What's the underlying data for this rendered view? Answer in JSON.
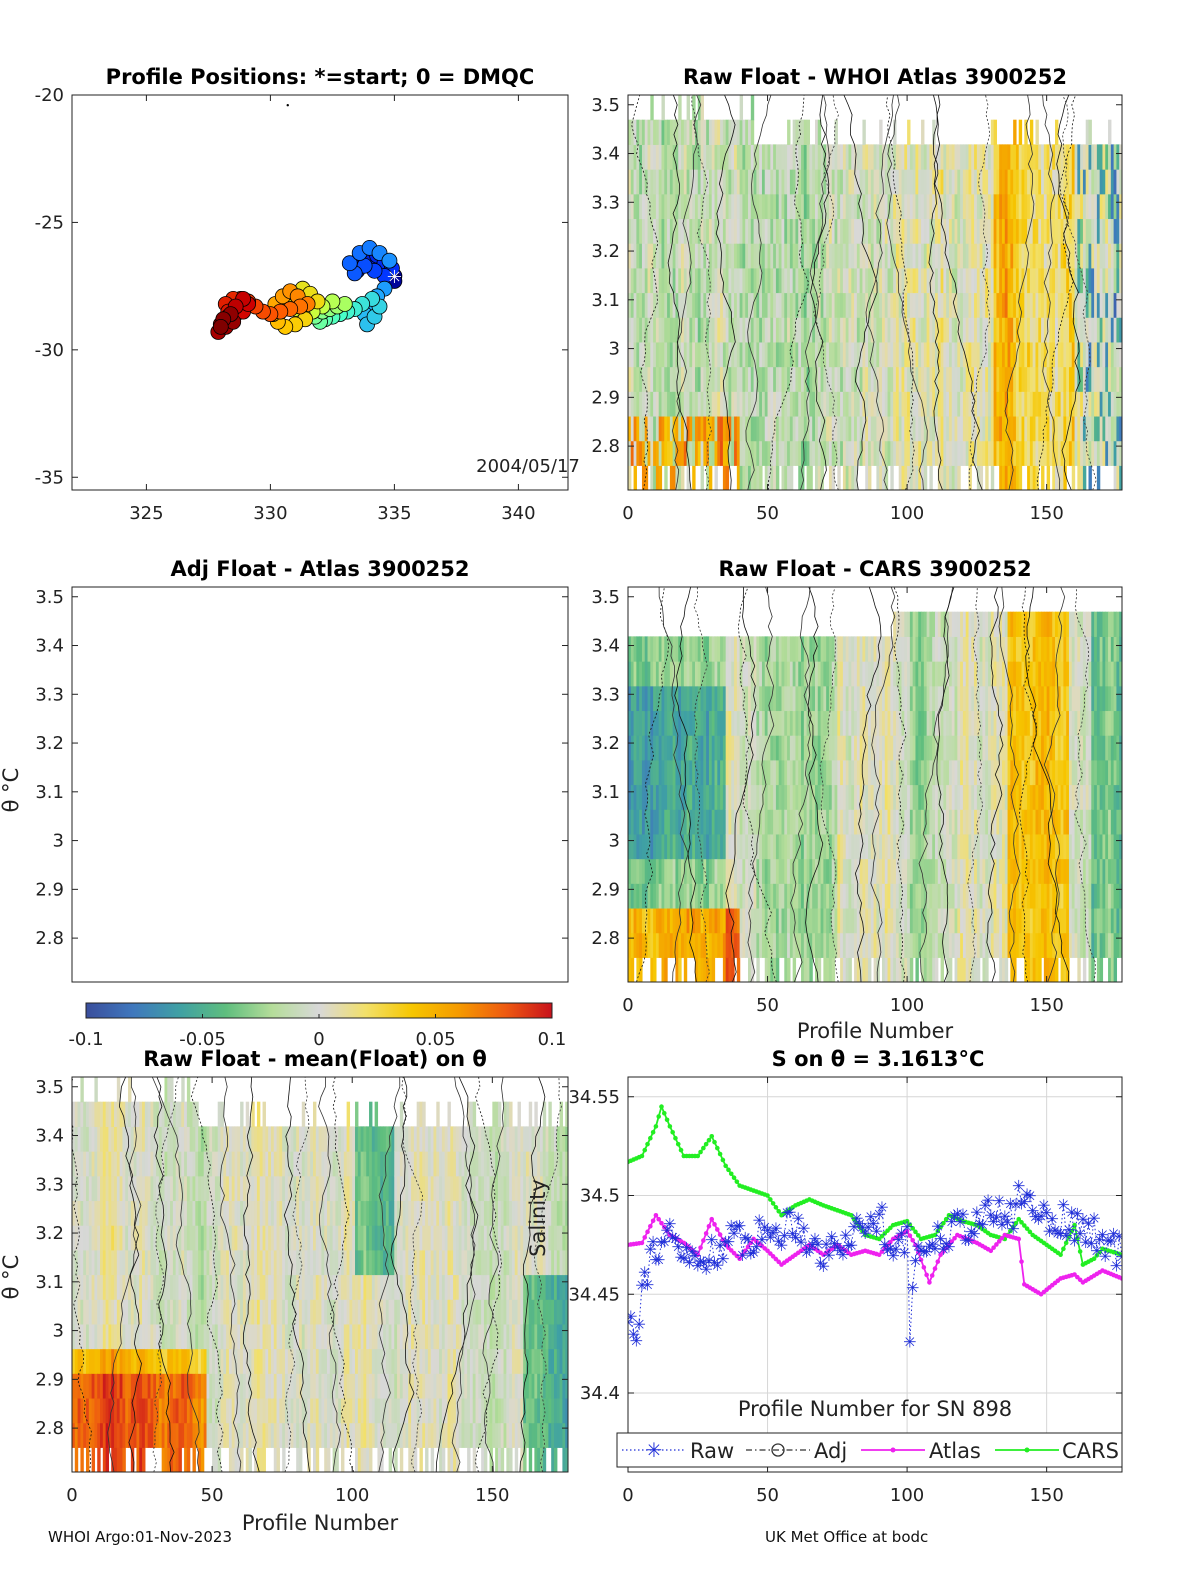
{
  "footer": {
    "left": "WHOI Argo:01-Nov-2023",
    "right": "UK Met Office at bodc"
  },
  "colors": {
    "heat": [
      "#3a4e9c",
      "#3f77bd",
      "#3fa0a4",
      "#5fbe7e",
      "#b5dd9a",
      "#d8d8d8",
      "#f2e06a",
      "#f6c600",
      "#f59a00",
      "#ee5a10",
      "#c8121c"
    ],
    "raw": "#1f2ed8",
    "adj": "#333333",
    "atlas": "#ee22ee",
    "cars": "#22ee22"
  },
  "chart_data": [
    {
      "id": "positions",
      "type": "scatter",
      "title": "Profile Positions: *=start; 0 = DMQC",
      "xlim": [
        322,
        342
      ],
      "ylim": [
        -35.5,
        -20
      ],
      "xticks": [
        325,
        330,
        335,
        340
      ],
      "yticks": [
        -20,
        -25,
        -30,
        -35
      ],
      "annotation": "2004/05/17",
      "track": [
        [
          335.0,
          -27.1
        ],
        [
          335.0,
          -27.3
        ],
        [
          334.7,
          -27.0
        ],
        [
          334.4,
          -26.8
        ],
        [
          334.0,
          -26.7
        ],
        [
          333.6,
          -26.6
        ],
        [
          333.5,
          -26.9
        ],
        [
          333.9,
          -26.5
        ],
        [
          334.3,
          -26.3
        ],
        [
          334.6,
          -26.6
        ],
        [
          334.9,
          -26.8
        ],
        [
          334.6,
          -27.1
        ],
        [
          334.2,
          -26.9
        ],
        [
          333.8,
          -26.7
        ],
        [
          333.4,
          -27.0
        ],
        [
          333.2,
          -26.6
        ],
        [
          333.6,
          -26.2
        ],
        [
          334.0,
          -26.0
        ],
        [
          334.4,
          -26.2
        ],
        [
          334.8,
          -26.5
        ],
        [
          334.6,
          -27.6
        ],
        [
          334.3,
          -27.9
        ],
        [
          334.0,
          -28.2
        ],
        [
          333.8,
          -28.6
        ],
        [
          333.9,
          -29.0
        ],
        [
          334.2,
          -28.7
        ],
        [
          334.4,
          -28.3
        ],
        [
          334.1,
          -28.0
        ],
        [
          333.7,
          -28.2
        ],
        [
          333.4,
          -28.4
        ],
        [
          333.1,
          -28.5
        ],
        [
          332.8,
          -28.6
        ],
        [
          332.5,
          -28.7
        ],
        [
          332.2,
          -28.8
        ],
        [
          332.0,
          -28.9
        ],
        [
          331.8,
          -28.7
        ],
        [
          332.1,
          -28.5
        ],
        [
          332.4,
          -28.4
        ],
        [
          332.7,
          -28.3
        ],
        [
          333.0,
          -28.2
        ],
        [
          332.5,
          -28.1
        ],
        [
          332.1,
          -28.3
        ],
        [
          331.7,
          -28.5
        ],
        [
          331.3,
          -28.6
        ],
        [
          331.0,
          -28.4
        ],
        [
          330.8,
          -28.1
        ],
        [
          331.0,
          -27.8
        ],
        [
          331.3,
          -27.6
        ],
        [
          331.6,
          -27.8
        ],
        [
          331.9,
          -28.1
        ],
        [
          331.4,
          -28.8
        ],
        [
          331.0,
          -29.0
        ],
        [
          330.6,
          -29.1
        ],
        [
          330.3,
          -28.9
        ],
        [
          330.1,
          -28.6
        ],
        [
          330.2,
          -28.2
        ],
        [
          330.5,
          -27.9
        ],
        [
          330.8,
          -27.7
        ],
        [
          331.1,
          -27.9
        ],
        [
          331.5,
          -28.2
        ],
        [
          331.2,
          -28.3
        ],
        [
          330.8,
          -28.4
        ],
        [
          330.4,
          -28.5
        ],
        [
          330.0,
          -28.6
        ],
        [
          329.7,
          -28.5
        ],
        [
          329.4,
          -28.3
        ],
        [
          329.1,
          -28.1
        ],
        [
          328.8,
          -28.0
        ],
        [
          328.5,
          -28.0
        ],
        [
          328.2,
          -28.2
        ],
        [
          328.3,
          -28.5
        ],
        [
          328.6,
          -28.6
        ],
        [
          328.9,
          -28.5
        ],
        [
          329.1,
          -28.2
        ],
        [
          328.9,
          -28.0
        ],
        [
          328.6,
          -28.3
        ],
        [
          328.3,
          -28.7
        ],
        [
          328.0,
          -29.0
        ],
        [
          327.9,
          -29.3
        ],
        [
          328.2,
          -29.1
        ],
        [
          328.5,
          -28.9
        ],
        [
          328.4,
          -28.6
        ],
        [
          328.1,
          -28.8
        ],
        [
          328.0,
          -29.1
        ]
      ],
      "colormap": [
        "#00008f",
        "#0030ff",
        "#1fa5ff",
        "#49ffc8",
        "#c8ff40",
        "#ffc800",
        "#ff5a00",
        "#d00000",
        "#800000"
      ]
    },
    {
      "id": "raw-whoi",
      "type": "heatmap",
      "title": "Raw Float - WHOI Atlas  3900252",
      "xlim": [
        0,
        177
      ],
      "ylim": [
        2.71,
        3.52
      ],
      "xticks": [
        0,
        50,
        100,
        150
      ],
      "yticks": [
        2.8,
        2.9,
        3.0,
        3.1,
        3.2,
        3.3,
        3.4,
        3.5
      ],
      "ytick_labels": [
        "2.8",
        "2.9",
        "3",
        "3.1",
        "3.2",
        "3.3",
        "3.4",
        "3.5"
      ],
      "seed": 11
    },
    {
      "id": "adj-atlas",
      "type": "heatmap",
      "title": "Adj Float - Atlas  3900252",
      "xlim": [
        0,
        177
      ],
      "ylim": [
        2.71,
        3.52
      ],
      "yticks": [
        2.8,
        2.9,
        3.0,
        3.1,
        3.2,
        3.3,
        3.4,
        3.5
      ],
      "ytick_labels": [
        "2.8",
        "2.9",
        "3",
        "3.1",
        "3.2",
        "3.3",
        "3.4",
        "3.5"
      ],
      "ylabel": "θ °C",
      "empty": true
    },
    {
      "id": "raw-cars",
      "type": "heatmap",
      "title": "Raw Float - CARS  3900252",
      "xlim": [
        0,
        177
      ],
      "ylim": [
        2.71,
        3.52
      ],
      "xticks": [
        0,
        50,
        100,
        150
      ],
      "yticks": [
        2.8,
        2.9,
        3.0,
        3.1,
        3.2,
        3.3,
        3.4,
        3.5
      ],
      "ytick_labels": [
        "2.8",
        "2.9",
        "3",
        "3.1",
        "3.2",
        "3.3",
        "3.4",
        "3.5"
      ],
      "xlabel": "Profile Number",
      "seed": 29
    },
    {
      "id": "colorbar",
      "type": "colorbar",
      "range": [
        -0.1,
        0.1
      ],
      "ticks": [
        -0.1,
        -0.05,
        0,
        0.05,
        0.1
      ],
      "tick_labels": [
        "-0.1",
        "-0.05",
        "0",
        "0.05",
        "0.1"
      ]
    },
    {
      "id": "raw-mean",
      "type": "heatmap",
      "title": "Raw Float - mean(Float) on θ",
      "xlim": [
        0,
        177
      ],
      "ylim": [
        2.71,
        3.52
      ],
      "xticks": [
        0,
        50,
        100,
        150
      ],
      "yticks": [
        2.8,
        2.9,
        3.0,
        3.1,
        3.2,
        3.3,
        3.4,
        3.5
      ],
      "ytick_labels": [
        "2.8",
        "2.9",
        "3",
        "3.1",
        "3.2",
        "3.3",
        "3.4",
        "3.5"
      ],
      "ylabel": "θ °C",
      "xlabel": "Profile Number",
      "seed": 47
    },
    {
      "id": "salinity",
      "type": "line",
      "title": "S on θ = 3.1613°C",
      "xlim": [
        0,
        177
      ],
      "ylim": [
        34.36,
        34.56
      ],
      "xticks": [
        0,
        50,
        100,
        150
      ],
      "yticks": [
        34.4,
        34.45,
        34.5,
        34.55
      ],
      "ytick_labels": [
        "34.4",
        "34.45",
        "34.5",
        "34.55"
      ],
      "xlabel": "Profile Number for SN 898",
      "ylabel": "Salinity",
      "legend": [
        "Raw",
        "Adj",
        "Atlas",
        "CARS"
      ],
      "series_knots": {
        "raw": [
          [
            0,
            34.44
          ],
          [
            3,
            34.435
          ],
          [
            6,
            34.46
          ],
          [
            10,
            34.475
          ],
          [
            15,
            34.478
          ],
          [
            20,
            34.47
          ],
          [
            25,
            34.465
          ],
          [
            30,
            34.472
          ],
          [
            40,
            34.478
          ],
          [
            50,
            34.48
          ],
          [
            60,
            34.487
          ],
          [
            70,
            34.47
          ],
          [
            80,
            34.48
          ],
          [
            90,
            34.49
          ],
          [
            95,
            34.475
          ],
          [
            100,
            34.48
          ],
          [
            101,
            34.42
          ],
          [
            103,
            34.47
          ],
          [
            110,
            34.48
          ],
          [
            120,
            34.485
          ],
          [
            130,
            34.49
          ],
          [
            138,
            34.49
          ],
          [
            140,
            34.5
          ],
          [
            150,
            34.49
          ],
          [
            160,
            34.485
          ],
          [
            170,
            34.478
          ],
          [
            177,
            34.47
          ]
        ],
        "atlas": [
          [
            0,
            34.475
          ],
          [
            5,
            34.476
          ],
          [
            10,
            34.49
          ],
          [
            15,
            34.48
          ],
          [
            20,
            34.476
          ],
          [
            25,
            34.47
          ],
          [
            30,
            34.488
          ],
          [
            35,
            34.475
          ],
          [
            40,
            34.468
          ],
          [
            45,
            34.478
          ],
          [
            50,
            34.472
          ],
          [
            55,
            34.465
          ],
          [
            60,
            34.47
          ],
          [
            65,
            34.475
          ],
          [
            70,
            34.47
          ],
          [
            75,
            34.475
          ],
          [
            80,
            34.47
          ],
          [
            85,
            34.472
          ],
          [
            90,
            34.47
          ],
          [
            95,
            34.478
          ],
          [
            100,
            34.482
          ],
          [
            103,
            34.475
          ],
          [
            108,
            34.456
          ],
          [
            112,
            34.47
          ],
          [
            118,
            34.48
          ],
          [
            125,
            34.476
          ],
          [
            130,
            34.472
          ],
          [
            135,
            34.48
          ],
          [
            140,
            34.478
          ],
          [
            142,
            34.455
          ],
          [
            148,
            34.45
          ],
          [
            155,
            34.458
          ],
          [
            160,
            34.46
          ],
          [
            163,
            34.456
          ],
          [
            170,
            34.462
          ],
          [
            177,
            34.458
          ]
        ],
        "cars": [
          [
            0,
            34.517
          ],
          [
            5,
            34.52
          ],
          [
            10,
            34.535
          ],
          [
            12,
            34.545
          ],
          [
            15,
            34.535
          ],
          [
            20,
            34.52
          ],
          [
            25,
            34.52
          ],
          [
            30,
            34.53
          ],
          [
            35,
            34.515
          ],
          [
            40,
            34.505
          ],
          [
            50,
            34.5
          ],
          [
            55,
            34.49
          ],
          [
            60,
            34.495
          ],
          [
            65,
            34.498
          ],
          [
            70,
            34.495
          ],
          [
            80,
            34.49
          ],
          [
            85,
            34.48
          ],
          [
            90,
            34.478
          ],
          [
            95,
            34.485
          ],
          [
            100,
            34.487
          ],
          [
            105,
            34.478
          ],
          [
            110,
            34.48
          ],
          [
            115,
            34.49
          ],
          [
            120,
            34.487
          ],
          [
            125,
            34.485
          ],
          [
            130,
            34.48
          ],
          [
            135,
            34.478
          ],
          [
            140,
            34.488
          ],
          [
            145,
            34.48
          ],
          [
            150,
            34.475
          ],
          [
            155,
            34.47
          ],
          [
            160,
            34.485
          ],
          [
            163,
            34.465
          ],
          [
            167,
            34.468
          ],
          [
            170,
            34.473
          ],
          [
            177,
            34.47
          ]
        ]
      }
    }
  ]
}
